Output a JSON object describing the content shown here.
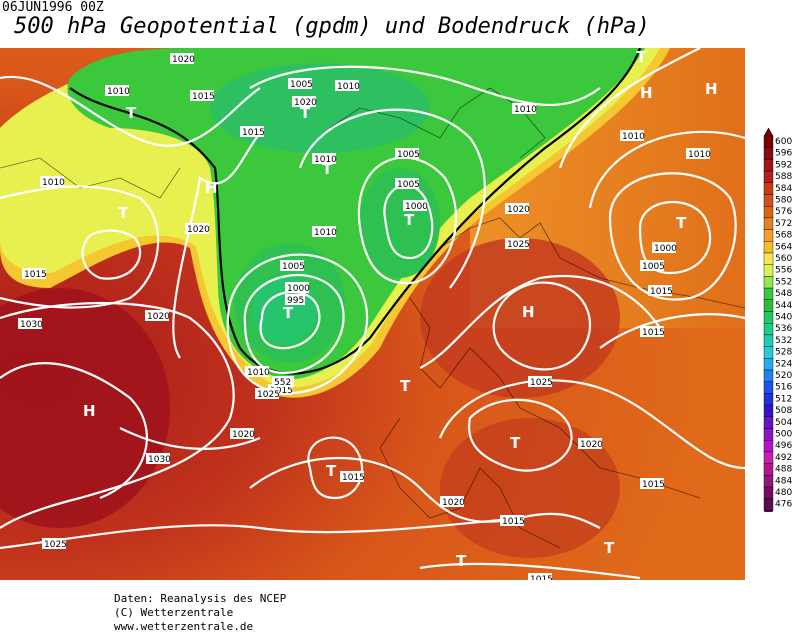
{
  "date_label": "06JUN1996 00Z",
  "title": "500 hPa Geopotential (gpdm) und Bodendruck (hPa)",
  "credits": [
    "Daten: Reanalysis des NCEP",
    "(C) Wetterzentrale",
    "www.wetterzentrale.de"
  ],
  "legend": {
    "values": [
      "600",
      "596",
      "592",
      "588",
      "584",
      "580",
      "576",
      "572",
      "568",
      "564",
      "560",
      "556",
      "552",
      "548",
      "544",
      "540",
      "536",
      "532",
      "528",
      "524",
      "520",
      "516",
      "512",
      "508",
      "504",
      "500",
      "496",
      "492",
      "488",
      "484",
      "480",
      "476"
    ],
    "colors": [
      "#7a0000",
      "#8b0a10",
      "#a01418",
      "#b81e1e",
      "#c83c14",
      "#d2501e",
      "#dc6414",
      "#e6821e",
      "#f0a028",
      "#f5be28",
      "#fae650",
      "#d7f550",
      "#96e650",
      "#3cc83c",
      "#28be3c",
      "#23c864",
      "#1ecd8c",
      "#1ecdb4",
      "#28c8dc",
      "#28aaf0",
      "#1e82f0",
      "#1e50f0",
      "#1e32dc",
      "#3214c8",
      "#6414c8",
      "#8c14c8",
      "#b414c8",
      "#c81eb4",
      "#b4148c",
      "#961478",
      "#780a64",
      "#5a0a50"
    ]
  },
  "map_labels": {
    "pressure": [
      "1020",
      "1010",
      "1015",
      "1005",
      "1020",
      "1010",
      "1015",
      "1005",
      "1010",
      "1010",
      "1005",
      "1000",
      "1020",
      "1010",
      "1015",
      "1020",
      "1010",
      "1005",
      "1000",
      "995",
      "1010",
      "1015",
      "1020",
      "1025",
      "1020",
      "1030",
      "1030",
      "1025",
      "1015",
      "1020",
      "1020",
      "1015",
      "1015",
      "1010",
      "1000",
      "1005",
      "1010",
      "1015",
      "1025",
      "1015",
      "1015",
      "1025"
    ],
    "pressure_highs_lows": [
      "T",
      "T",
      "T",
      "H",
      "T",
      "T",
      "T",
      "H",
      "H",
      "T",
      "T",
      "T",
      "T",
      "T",
      "H",
      "H",
      "T",
      "T"
    ],
    "geopotential_tag": "552"
  }
}
